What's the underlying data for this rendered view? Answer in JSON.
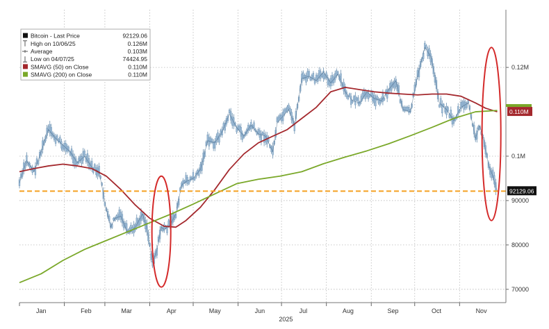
{
  "chart_data": {
    "type": "line",
    "xlabel": "2025",
    "ylim": [
      67000,
      133000
    ],
    "x_ticks": [
      {
        "label": "Jan",
        "day": 15
      },
      {
        "label": "Feb",
        "day": 46
      },
      {
        "label": "Mar",
        "day": 74
      },
      {
        "label": "Apr",
        "day": 105
      },
      {
        "label": "May",
        "day": 135
      },
      {
        "label": "Jun",
        "day": 166
      },
      {
        "label": "Jul",
        "day": 196
      },
      {
        "label": "Aug",
        "day": 227
      },
      {
        "label": "Sep",
        "day": 258
      },
      {
        "label": "Oct",
        "day": 288
      },
      {
        "label": "Nov",
        "day": 319
      }
    ],
    "y_ticks": [
      {
        "label": "70000",
        "value": 70000
      },
      {
        "label": "80000",
        "value": 80000
      },
      {
        "label": "90000",
        "value": 90000
      },
      {
        "label": "0.1M",
        "value": 100000
      },
      {
        "label": "0.12M",
        "value": 120000
      }
    ],
    "legend": [
      {
        "icon": "square",
        "color": "#111111",
        "name": "Bitcoin - Last Price",
        "value": "92129.06"
      },
      {
        "icon": "high",
        "color": "#555555",
        "name": "High on 10/06/25",
        "value": "0.126M"
      },
      {
        "icon": "average",
        "color": "#555555",
        "name": "Average",
        "value": "0.103M"
      },
      {
        "icon": "low",
        "color": "#555555",
        "name": "Low on 04/07/25",
        "value": "74424.95"
      },
      {
        "icon": "swatch",
        "color": "#a4282d",
        "name": "SMAVG (50)  on Close",
        "value": "0.110M"
      },
      {
        "icon": "swatch",
        "color": "#7aa829",
        "name": "SMAVG (200)  on Close",
        "value": "0.110M"
      }
    ],
    "last_price_tag": "92129.06",
    "sma_tag": "0.110M",
    "reference_level": 92129.06,
    "series": [
      {
        "name": "Bitcoin - Last Price",
        "style": "candle",
        "color": "#9bbad6",
        "points": [
          [
            0,
            94000
          ],
          [
            5,
            99000
          ],
          [
            10,
            96500
          ],
          [
            15,
            101000
          ],
          [
            20,
            106000
          ],
          [
            25,
            104000
          ],
          [
            30,
            102500
          ],
          [
            35,
            101000
          ],
          [
            40,
            98500
          ],
          [
            45,
            100000
          ],
          [
            50,
            97500
          ],
          [
            55,
            96500
          ],
          [
            60,
            88000
          ],
          [
            63,
            84000
          ],
          [
            66,
            86000
          ],
          [
            70,
            86500
          ],
          [
            75,
            82500
          ],
          [
            80,
            84000
          ],
          [
            85,
            87000
          ],
          [
            88,
            84000
          ],
          [
            92,
            76000
          ],
          [
            95,
            79000
          ],
          [
            98,
            84000
          ],
          [
            100,
            83500
          ],
          [
            104,
            84500
          ],
          [
            108,
            87000
          ],
          [
            112,
            93500
          ],
          [
            116,
            94500
          ],
          [
            120,
            95000
          ],
          [
            125,
            97000
          ],
          [
            130,
            103500
          ],
          [
            135,
            103000
          ],
          [
            140,
            105500
          ],
          [
            145,
            109500
          ],
          [
            150,
            106500
          ],
          [
            155,
            104500
          ],
          [
            160,
            107000
          ],
          [
            165,
            105000
          ],
          [
            170,
            104500
          ],
          [
            175,
            101000
          ],
          [
            178,
            107500
          ],
          [
            182,
            109000
          ],
          [
            186,
            110500
          ],
          [
            190,
            107000
          ],
          [
            195,
            117500
          ],
          [
            200,
            118000
          ],
          [
            205,
            117000
          ],
          [
            210,
            119000
          ],
          [
            215,
            116500
          ],
          [
            220,
            118500
          ],
          [
            225,
            114500
          ],
          [
            230,
            112500
          ],
          [
            235,
            112000
          ],
          [
            240,
            114500
          ],
          [
            245,
            113000
          ],
          [
            250,
            112500
          ],
          [
            255,
            115000
          ],
          [
            260,
            117000
          ],
          [
            265,
            110500
          ],
          [
            270,
            110000
          ],
          [
            275,
            118000
          ],
          [
            280,
            124500
          ],
          [
            284,
            122500
          ],
          [
            287,
            118000
          ],
          [
            290,
            112000
          ],
          [
            295,
            110500
          ],
          [
            300,
            108000
          ],
          [
            305,
            111000
          ],
          [
            310,
            112000
          ],
          [
            315,
            104000
          ],
          [
            318,
            107000
          ],
          [
            321,
            103000
          ],
          [
            324,
            98000
          ],
          [
            327,
            95500
          ],
          [
            330,
            92129
          ]
        ]
      },
      {
        "name": "SMAVG (50)  on Close",
        "style": "line",
        "color": "#a4282d",
        "points": [
          [
            0,
            96500
          ],
          [
            10,
            97200
          ],
          [
            20,
            97800
          ],
          [
            30,
            98200
          ],
          [
            40,
            97800
          ],
          [
            50,
            97200
          ],
          [
            60,
            95500
          ],
          [
            70,
            92500
          ],
          [
            80,
            89000
          ],
          [
            90,
            86000
          ],
          [
            100,
            84200
          ],
          [
            108,
            84000
          ],
          [
            115,
            85500
          ],
          [
            125,
            88500
          ],
          [
            135,
            92500
          ],
          [
            145,
            97000
          ],
          [
            155,
            100500
          ],
          [
            165,
            103000
          ],
          [
            175,
            104500
          ],
          [
            185,
            106000
          ],
          [
            195,
            108500
          ],
          [
            205,
            111000
          ],
          [
            215,
            114500
          ],
          [
            225,
            115500
          ],
          [
            235,
            115000
          ],
          [
            245,
            114500
          ],
          [
            255,
            114200
          ],
          [
            265,
            114000
          ],
          [
            275,
            113800
          ],
          [
            285,
            114000
          ],
          [
            295,
            114000
          ],
          [
            305,
            113500
          ],
          [
            315,
            112000
          ],
          [
            322,
            110800
          ],
          [
            330,
            110000
          ]
        ]
      },
      {
        "name": "SMAVG (200)  on Close",
        "style": "line",
        "color": "#7aa829",
        "points": [
          [
            0,
            71500
          ],
          [
            15,
            73500
          ],
          [
            30,
            76500
          ],
          [
            45,
            79000
          ],
          [
            60,
            81000
          ],
          [
            75,
            83000
          ],
          [
            90,
            85000
          ],
          [
            105,
            87000
          ],
          [
            120,
            89200
          ],
          [
            135,
            91500
          ],
          [
            150,
            93800
          ],
          [
            165,
            94800
          ],
          [
            180,
            95500
          ],
          [
            195,
            96500
          ],
          [
            210,
            98300
          ],
          [
            225,
            99800
          ],
          [
            240,
            101200
          ],
          [
            255,
            102800
          ],
          [
            270,
            104600
          ],
          [
            285,
            106500
          ],
          [
            300,
            108500
          ],
          [
            315,
            110000
          ],
          [
            330,
            110300
          ]
        ]
      }
    ],
    "highlights": [
      {
        "center_day": 98,
        "center_value": 83000,
        "half_width_days": 6.5,
        "half_height_value": 12500
      },
      {
        "center_day": 326,
        "center_value": 105000,
        "half_width_days": 6.5,
        "half_height_value": 19500
      }
    ]
  }
}
